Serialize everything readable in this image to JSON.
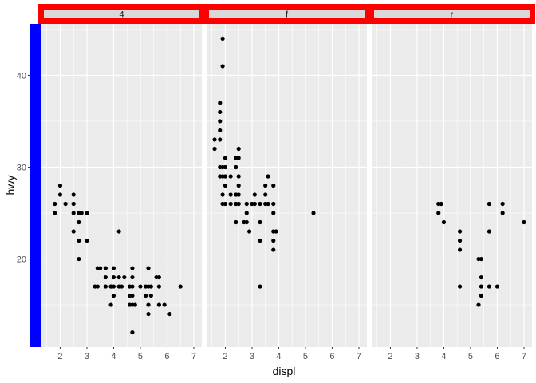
{
  "chart_data": {
    "type": "scatter",
    "facet_by": "drv",
    "xlabel": "displ",
    "ylabel": "hwy",
    "xlim": [
      1.3,
      7.3
    ],
    "ylim": [
      10.4,
      45.6
    ],
    "x_ticks": [
      2,
      3,
      4,
      5,
      6,
      7
    ],
    "y_ticks": [
      20,
      30,
      40
    ],
    "grid": true,
    "colors": {
      "panel_bg": "#ebebeb",
      "grid": "#ffffff",
      "point": "#000000",
      "strip_bg": "#d9d9d9",
      "strip_border": "#ff0000",
      "y_axis_bar": "#0000ff"
    },
    "panels": [
      {
        "label": "4",
        "points": [
          [
            1.8,
            26
          ],
          [
            1.8,
            25
          ],
          [
            2.0,
            28
          ],
          [
            2.0,
            27
          ],
          [
            2.2,
            26
          ],
          [
            2.5,
            27
          ],
          [
            2.5,
            26
          ],
          [
            2.5,
            25
          ],
          [
            2.5,
            23
          ],
          [
            2.7,
            25
          ],
          [
            2.7,
            24
          ],
          [
            2.7,
            22
          ],
          [
            2.7,
            20
          ],
          [
            2.8,
            25
          ],
          [
            3.0,
            25
          ],
          [
            3.0,
            22
          ],
          [
            3.3,
            17
          ],
          [
            3.4,
            17
          ],
          [
            3.4,
            19
          ],
          [
            3.5,
            19
          ],
          [
            3.7,
            18
          ],
          [
            3.7,
            17
          ],
          [
            3.7,
            19
          ],
          [
            3.9,
            17
          ],
          [
            3.9,
            15
          ],
          [
            3.9,
            17
          ],
          [
            4.0,
            17
          ],
          [
            4.0,
            18
          ],
          [
            4.0,
            19
          ],
          [
            4.0,
            16
          ],
          [
            4.2,
            23
          ],
          [
            4.2,
            17
          ],
          [
            4.2,
            18
          ],
          [
            4.3,
            17
          ],
          [
            4.4,
            18
          ],
          [
            4.6,
            17
          ],
          [
            4.6,
            16
          ],
          [
            4.6,
            15
          ],
          [
            4.7,
            19
          ],
          [
            4.7,
            18
          ],
          [
            4.7,
            17
          ],
          [
            4.7,
            16
          ],
          [
            4.7,
            15
          ],
          [
            4.7,
            12
          ],
          [
            4.8,
            15
          ],
          [
            5.0,
            17
          ],
          [
            5.2,
            17
          ],
          [
            5.2,
            16
          ],
          [
            5.3,
            17
          ],
          [
            5.3,
            15
          ],
          [
            5.3,
            14
          ],
          [
            5.3,
            19
          ],
          [
            5.4,
            17
          ],
          [
            5.4,
            16
          ],
          [
            5.6,
            18
          ],
          [
            5.7,
            18
          ],
          [
            5.7,
            17
          ],
          [
            5.7,
            15
          ],
          [
            5.9,
            15
          ],
          [
            6.1,
            14
          ],
          [
            6.5,
            17
          ]
        ]
      },
      {
        "label": "f",
        "points": [
          [
            1.6,
            32
          ],
          [
            1.6,
            33
          ],
          [
            1.8,
            29
          ],
          [
            1.8,
            34
          ],
          [
            1.8,
            30
          ],
          [
            1.8,
            35
          ],
          [
            1.8,
            36
          ],
          [
            1.8,
            37
          ],
          [
            1.8,
            33
          ],
          [
            1.9,
            44
          ],
          [
            1.9,
            41
          ],
          [
            1.9,
            29
          ],
          [
            1.9,
            26
          ],
          [
            1.9,
            27
          ],
          [
            1.9,
            30
          ],
          [
            2.0,
            29
          ],
          [
            2.0,
            28
          ],
          [
            2.0,
            31
          ],
          [
            2.0,
            30
          ],
          [
            2.0,
            26
          ],
          [
            2.2,
            29
          ],
          [
            2.2,
            27
          ],
          [
            2.2,
            26
          ],
          [
            2.4,
            31
          ],
          [
            2.4,
            30
          ],
          [
            2.4,
            27
          ],
          [
            2.4,
            26
          ],
          [
            2.4,
            24
          ],
          [
            2.5,
            32
          ],
          [
            2.5,
            31
          ],
          [
            2.5,
            29
          ],
          [
            2.5,
            26
          ],
          [
            2.5,
            28
          ],
          [
            2.5,
            27
          ],
          [
            2.7,
            24
          ],
          [
            2.8,
            26
          ],
          [
            2.8,
            24
          ],
          [
            2.8,
            25
          ],
          [
            2.9,
            23
          ],
          [
            3.0,
            26
          ],
          [
            3.1,
            26
          ],
          [
            3.1,
            27
          ],
          [
            3.3,
            26
          ],
          [
            3.3,
            24
          ],
          [
            3.3,
            22
          ],
          [
            3.3,
            17
          ],
          [
            3.5,
            26
          ],
          [
            3.5,
            27
          ],
          [
            3.5,
            28
          ],
          [
            3.6,
            29
          ],
          [
            3.6,
            26
          ],
          [
            3.8,
            23
          ],
          [
            3.8,
            28
          ],
          [
            3.8,
            26
          ],
          [
            3.8,
            25
          ],
          [
            3.8,
            21
          ],
          [
            3.8,
            22
          ],
          [
            3.9,
            23
          ],
          [
            5.3,
            25
          ]
        ]
      },
      {
        "label": "r",
        "points": [
          [
            3.8,
            26
          ],
          [
            3.8,
            25
          ],
          [
            3.9,
            26
          ],
          [
            4.0,
            24
          ],
          [
            4.6,
            23
          ],
          [
            4.6,
            22
          ],
          [
            4.6,
            21
          ],
          [
            4.6,
            17
          ],
          [
            5.3,
            20
          ],
          [
            5.3,
            15
          ],
          [
            5.4,
            20
          ],
          [
            5.4,
            18
          ],
          [
            5.4,
            17
          ],
          [
            5.4,
            16
          ],
          [
            5.7,
            26
          ],
          [
            5.7,
            23
          ],
          [
            5.7,
            17
          ],
          [
            6.0,
            17
          ],
          [
            6.2,
            26
          ],
          [
            6.2,
            25
          ],
          [
            7.0,
            24
          ]
        ]
      }
    ]
  }
}
